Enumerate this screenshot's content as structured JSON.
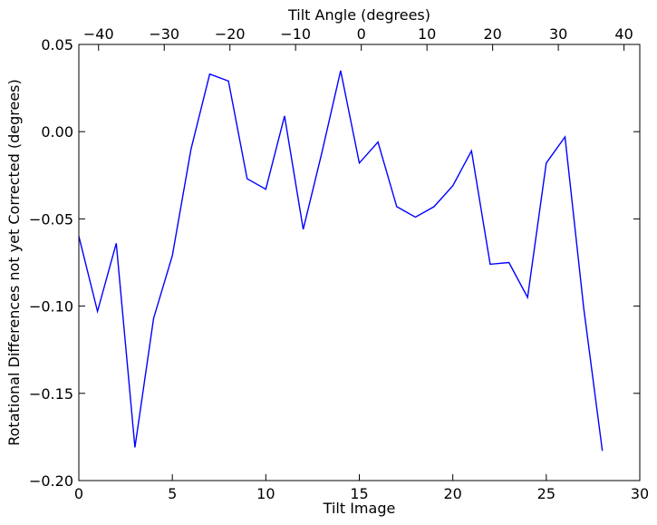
{
  "chart_data": {
    "type": "line",
    "title": "",
    "xlabel": "Tilt Image",
    "ylabel": "Rotational Differences not yet Corrected (degrees)",
    "x2label": "Tilt Angle (degrees)",
    "xlim": [
      0,
      30
    ],
    "ylim": [
      -0.2,
      0.05
    ],
    "x2lim": [
      -43,
      42.4
    ],
    "grid": false,
    "legend": "none",
    "line_color": "#0000ff",
    "x_ticks": [
      "0",
      "5",
      "10",
      "15",
      "20",
      "25",
      "30"
    ],
    "x_tick_values": [
      0,
      5,
      10,
      15,
      20,
      25,
      30
    ],
    "x2_ticks": [
      "−40",
      "−30",
      "−20",
      "−10",
      "0",
      "10",
      "20",
      "30",
      "40"
    ],
    "x2_tick_values": [
      -40,
      -30,
      -20,
      -10,
      0,
      10,
      20,
      30,
      40
    ],
    "y_ticks": [
      "0.05",
      "0.00",
      "−0.05",
      "−0.10",
      "−0.15",
      "−0.20"
    ],
    "y_tick_values": [
      0.05,
      0.0,
      -0.05,
      -0.1,
      -0.15,
      -0.2
    ],
    "x": [
      0,
      1,
      2,
      3,
      4,
      5,
      6,
      7,
      8,
      9,
      10,
      11,
      12,
      13,
      14,
      15,
      16,
      17,
      18,
      19,
      20,
      21,
      22,
      23,
      24,
      25,
      26,
      27,
      28
    ],
    "values": [
      -0.06,
      -0.103,
      -0.064,
      -0.181,
      -0.107,
      -0.071,
      -0.01,
      0.033,
      0.029,
      -0.027,
      -0.033,
      0.009,
      -0.056,
      -0.012,
      0.035,
      -0.018,
      -0.006,
      -0.043,
      -0.049,
      -0.043,
      -0.031,
      -0.011,
      -0.076,
      -0.075,
      -0.095,
      -0.018,
      -0.003,
      -0.101,
      -0.183
    ]
  }
}
